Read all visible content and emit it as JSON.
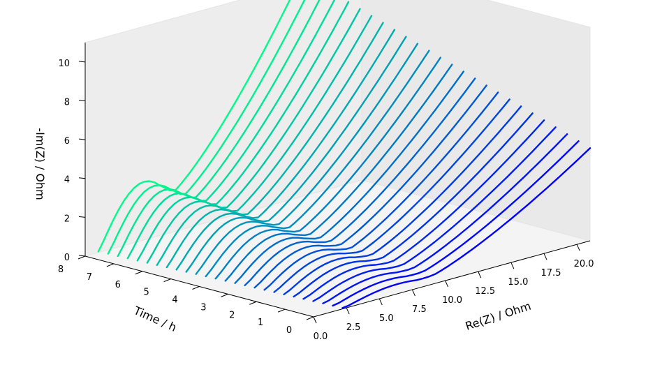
{
  "chart_data": {
    "type": "line",
    "projection": "3d",
    "title": "",
    "xlabel": "Re(Z) / Ohm",
    "ylabel": "Time / h",
    "zlabel": "-Im(Z) / Ohm",
    "xlim": [
      0.0,
      21.0
    ],
    "ylim": [
      0,
      8
    ],
    "zlim": [
      0,
      11
    ],
    "x_ticks": [
      "0.0",
      "2.5",
      "5.0",
      "7.5",
      "10.0",
      "12.5",
      "15.0",
      "17.5",
      "20.0"
    ],
    "y_ticks": [
      "0",
      "1",
      "2",
      "3",
      "4",
      "5",
      "6",
      "7",
      "8"
    ],
    "z_ticks": [
      "0",
      "2",
      "4",
      "6",
      "8",
      "10"
    ],
    "grid": false,
    "colormap": {
      "start_color": "#0000ff",
      "end_color": "#00fa8c"
    },
    "series_count": 26,
    "time_range": [
      0,
      8
    ],
    "re_z_start": {
      "first": 2.2,
      "last": 1.0
    },
    "re_z_end": {
      "first": 21.0,
      "last": 16.5
    },
    "im_z_tail_max": {
      "first": 4.5,
      "last": 9.8
    },
    "arc_height": {
      "first": 0.5,
      "last": 3.0
    }
  }
}
